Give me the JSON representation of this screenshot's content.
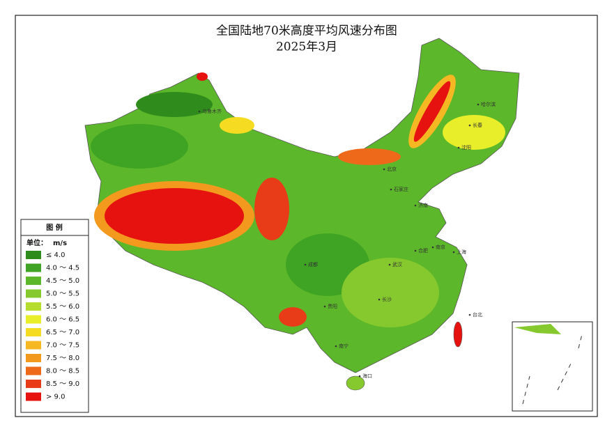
{
  "title": "全国陆地70米高度平均风速分布图",
  "subtitle": "2025年3月",
  "legend": {
    "title": "图 例",
    "unit_label": "单位：",
    "unit": "m/s",
    "items": [
      {
        "label": "≤ 4.0",
        "color": "#2e8b1c"
      },
      {
        "label": "4.0 ～ 4.5",
        "color": "#3fa324"
      },
      {
        "label": "4.5 ～ 5.0",
        "color": "#5cb82a"
      },
      {
        "label": "5.0 ～ 5.5",
        "color": "#86c92e"
      },
      {
        "label": "5.5 ～ 6.0",
        "color": "#b5dc2e"
      },
      {
        "label": "6.0 ～ 6.5",
        "color": "#e8ee2a"
      },
      {
        "label": "6.5 ～ 7.0",
        "color": "#f5dc22"
      },
      {
        "label": "7.0 ～ 7.5",
        "color": "#f5b823"
      },
      {
        "label": "7.5 ～ 8.0",
        "color": "#f39a1e"
      },
      {
        "label": "8.0 ～ 8.5",
        "color": "#ee6a1a"
      },
      {
        "label": "8.5 ～ 9.0",
        "color": "#e83c18"
      },
      {
        "label": "> 9.0",
        "color": "#e5120f"
      }
    ]
  },
  "cities": [
    "乌鲁木齐",
    "哈尔滨",
    "长春",
    "沈阳",
    "北京",
    "石家庄",
    "济南",
    "成都",
    "武汉",
    "南京",
    "上海",
    "合肥",
    "台北",
    "南宁",
    "海口",
    "贵阳",
    "长沙"
  ]
}
